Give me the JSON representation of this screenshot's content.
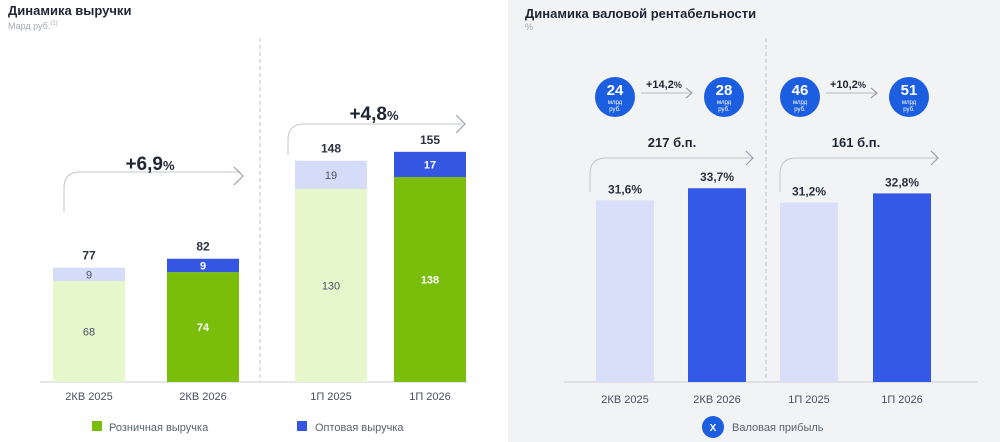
{
  "colors": {
    "retail_light": "#e6f7cc",
    "retail_dark": "#7abd0b",
    "wholesale_light": "#d4dcf8",
    "wholesale_dark": "#3556e3",
    "margin_light": "#d9dff8",
    "margin_dark": "#3459e6",
    "circle": "#1c5ee0"
  },
  "left": {
    "title": "Динамика выручки",
    "subtitle": "Мард руб.",
    "subtitle_sup": "(1)",
    "growth_1": "+6,9",
    "growth_2": "+4,8",
    "percent_sign": "%",
    "legend": {
      "retail": "Розничная выручка",
      "wholesale": "Оптовая выручка"
    }
  },
  "right": {
    "title": "Динамика валовой рентабельности",
    "subtitle": "%",
    "bp_1": "217 б.п.",
    "bp_2": "161 б.п.",
    "growth_1": "+14,2",
    "growth_2": "+10,2",
    "percent_sign": "%",
    "unit_line1": "млрд",
    "unit_line2": "руб.",
    "circles": [
      "24",
      "28",
      "46",
      "51"
    ],
    "legend": {
      "badge": "X",
      "label": "Валовая прибыль"
    }
  },
  "chart_data": [
    {
      "type": "bar",
      "title": "Динамика выручки",
      "subtitle": "Мард руб.",
      "categories": [
        "2КВ 2025",
        "2КВ 2026",
        "1П 2025",
        "1П 2026"
      ],
      "stacked": true,
      "series": [
        {
          "name": "Розничная выручка",
          "values": [
            68,
            74,
            130,
            138
          ]
        },
        {
          "name": "Оптовая выручка",
          "values": [
            9,
            9,
            19,
            17
          ]
        }
      ],
      "totals": [
        77,
        82,
        148,
        155
      ],
      "ylim": [
        0,
        200
      ],
      "grid": false,
      "legend": "bottom"
    },
    {
      "type": "bar",
      "title": "Динамика валовой рентабельности",
      "subtitle": "%",
      "categories": [
        "2КВ 2025",
        "2КВ 2026",
        "1П 2025",
        "1П 2026"
      ],
      "values": [
        31.6,
        33.7,
        31.2,
        32.8
      ],
      "labels": [
        "31,6%",
        "33,7%",
        "31,2%",
        "32,8%"
      ],
      "ylim": [
        0,
        60
      ],
      "grid": false,
      "legend": "bottom"
    }
  ]
}
